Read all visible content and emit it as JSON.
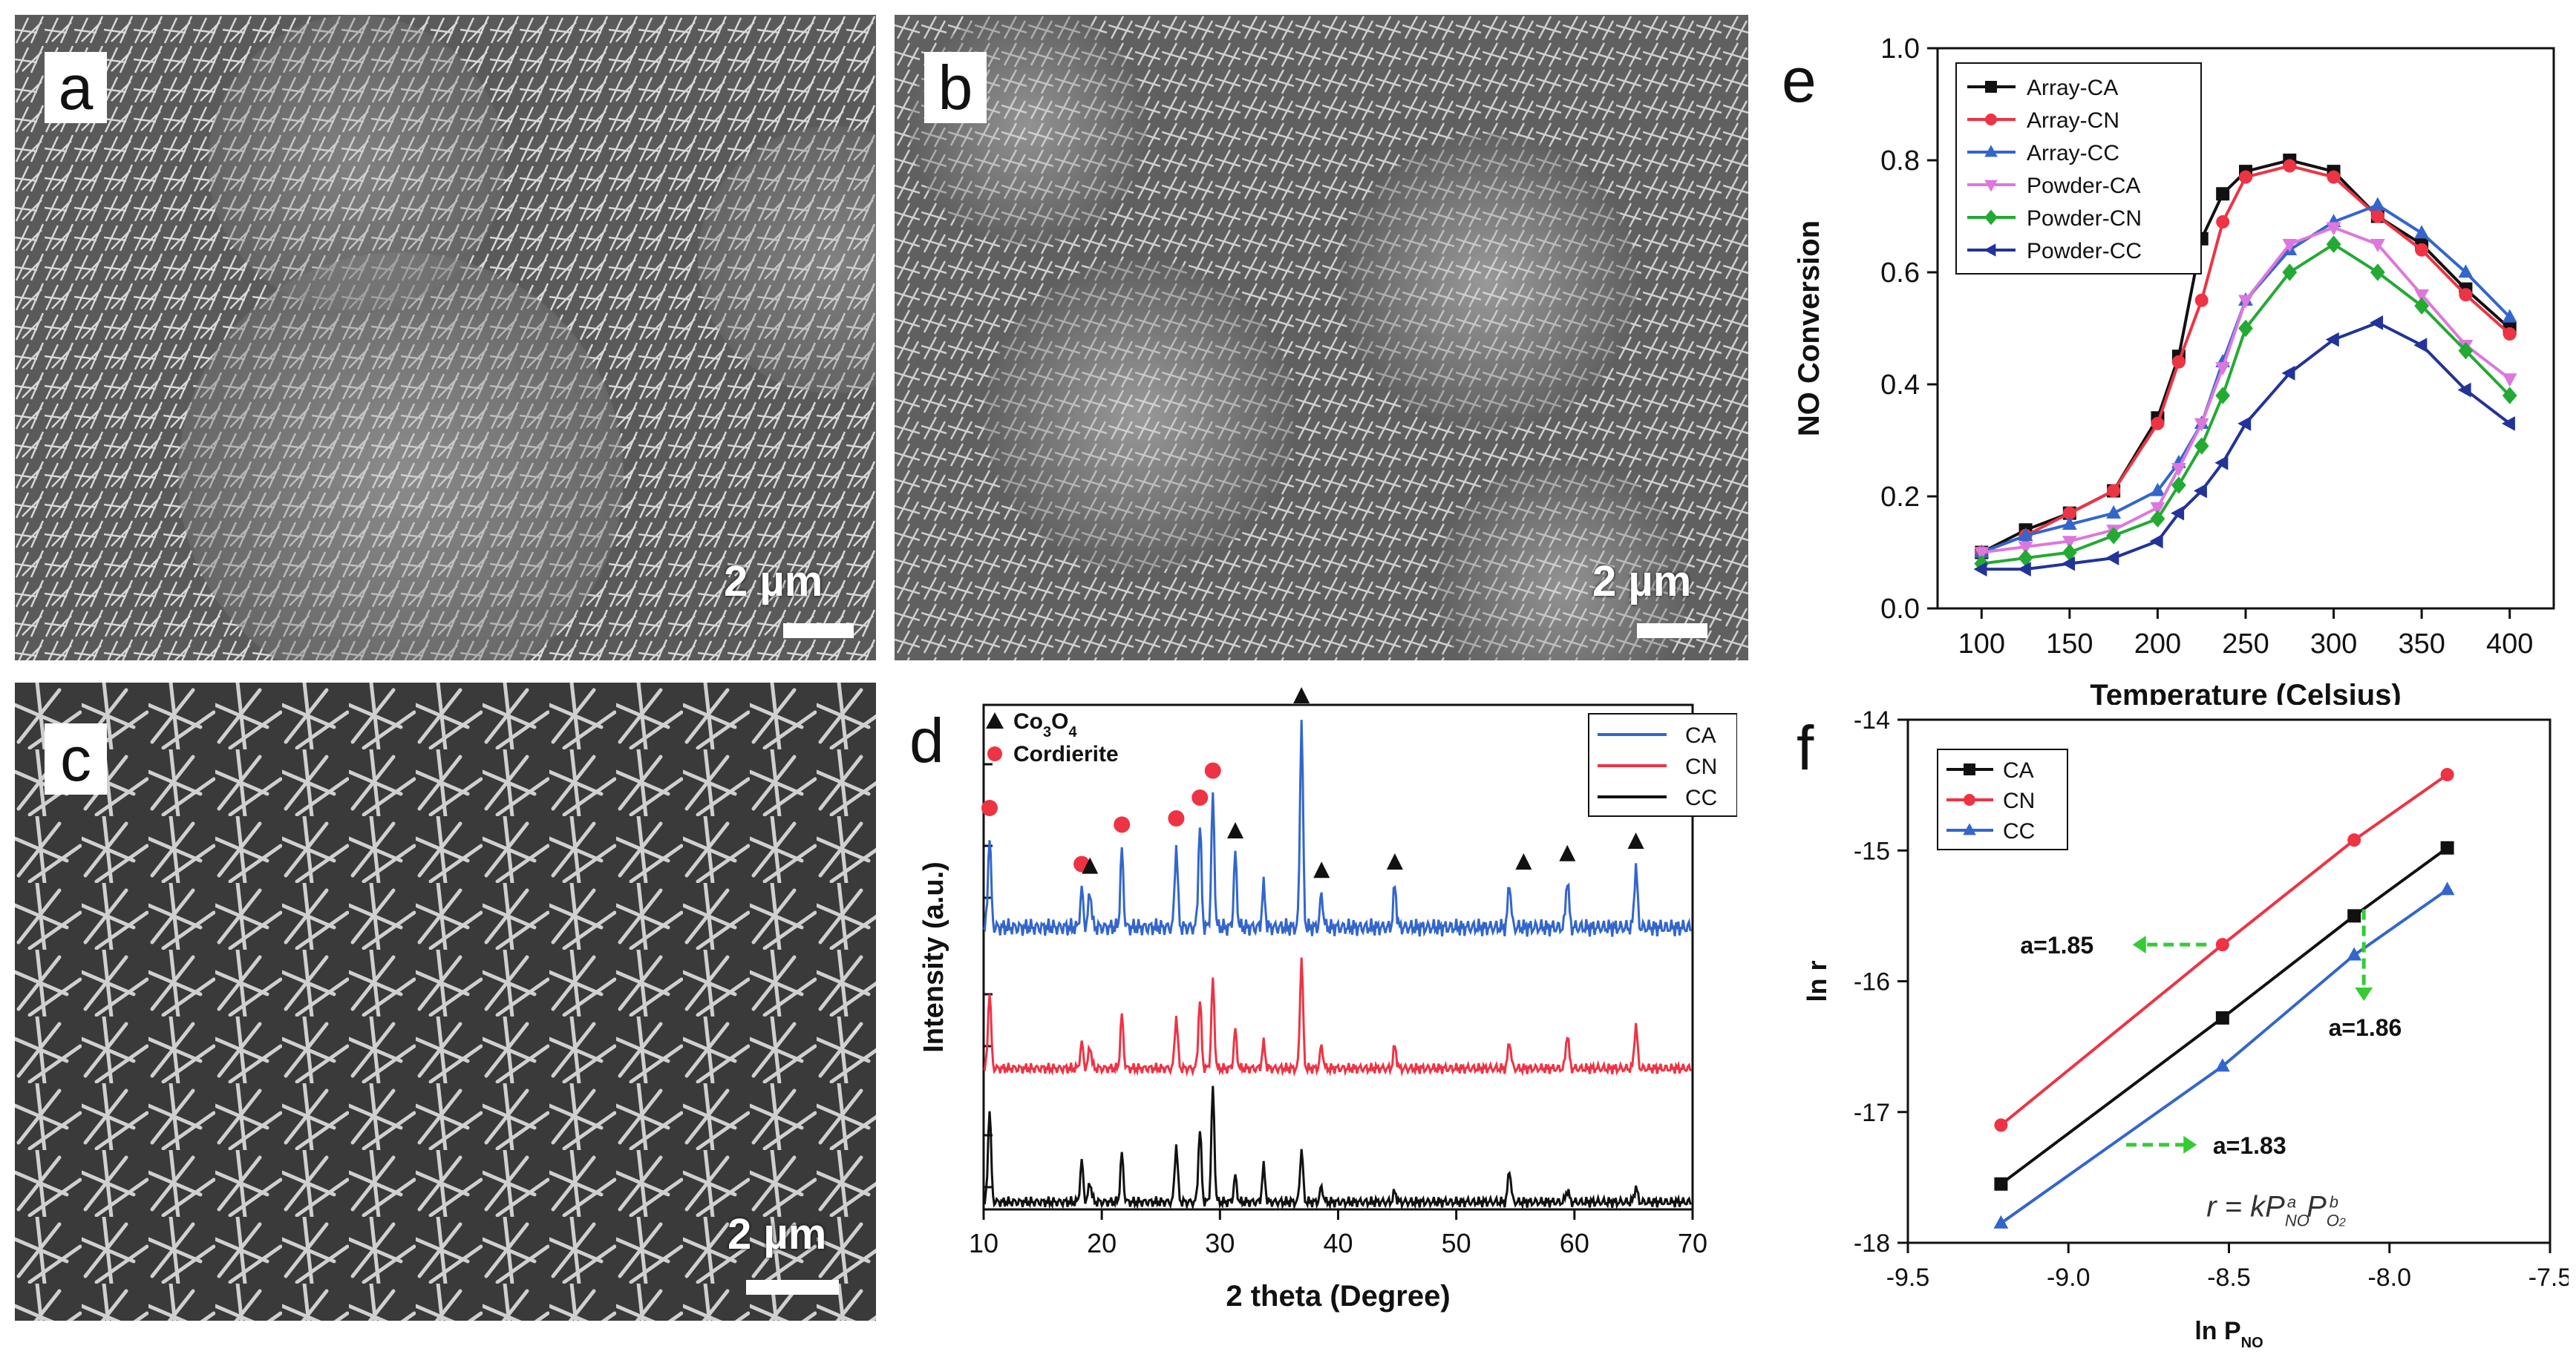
{
  "panels": {
    "a": {
      "letter": "a",
      "scale": "2 µm"
    },
    "b": {
      "letter": "b",
      "scale": "2 µm"
    },
    "c": {
      "letter": "c",
      "scale": "2 µm"
    },
    "d": {
      "letter": "d"
    },
    "e": {
      "letter": "e"
    },
    "f": {
      "letter": "f"
    }
  },
  "colors": {
    "black": "#111111",
    "red": "#ee3344",
    "blue": "#3366cc",
    "pink": "#dd77dd",
    "green": "#22aa33",
    "navy": "#223399",
    "arrow_green": "#33cc33"
  },
  "chart_data": [
    {
      "id": "e",
      "type": "line",
      "xlabel": "Temperature (Celsius)",
      "ylabel": "NO Conversion",
      "xlim": [
        75,
        425
      ],
      "ylim": [
        0.0,
        1.0
      ],
      "xticks": [
        "100",
        "150",
        "200",
        "250",
        "300",
        "350",
        "400"
      ],
      "yticks": [
        "0.0",
        "0.2",
        "0.4",
        "0.6",
        "0.8",
        "1.0"
      ],
      "legend_position": "top-left",
      "x": [
        100,
        125,
        150,
        175,
        200,
        212,
        225,
        237,
        250,
        275,
        300,
        325,
        350,
        375,
        400
      ],
      "series": [
        {
          "name": "Array-CA",
          "marker": "square",
          "color": "#111111",
          "values": [
            0.1,
            0.14,
            0.17,
            0.21,
            0.34,
            0.45,
            0.66,
            0.74,
            0.78,
            0.8,
            0.78,
            0.7,
            0.65,
            0.57,
            0.5
          ]
        },
        {
          "name": "Array-CN",
          "marker": "circle",
          "color": "#ee3344",
          "values": [
            0.1,
            0.13,
            0.17,
            0.21,
            0.33,
            0.44,
            0.55,
            0.69,
            0.77,
            0.79,
            0.77,
            0.7,
            0.64,
            0.56,
            0.49
          ]
        },
        {
          "name": "Array-CC",
          "marker": "triangle-up",
          "color": "#3366cc",
          "values": [
            0.1,
            0.13,
            0.15,
            0.17,
            0.21,
            0.26,
            0.33,
            0.44,
            0.55,
            0.64,
            0.69,
            0.72,
            0.67,
            0.6,
            0.52
          ]
        },
        {
          "name": "Powder-CA",
          "marker": "triangle-down",
          "color": "#dd77dd",
          "values": [
            0.1,
            0.11,
            0.12,
            0.14,
            0.18,
            0.25,
            0.33,
            0.43,
            0.55,
            0.65,
            0.68,
            0.65,
            0.56,
            0.47,
            0.41
          ]
        },
        {
          "name": "Powder-CN",
          "marker": "diamond",
          "color": "#22aa33",
          "values": [
            0.08,
            0.09,
            0.1,
            0.13,
            0.16,
            0.22,
            0.29,
            0.38,
            0.5,
            0.6,
            0.65,
            0.6,
            0.54,
            0.46,
            0.38
          ]
        },
        {
          "name": "Powder-CC",
          "marker": "triangle-left",
          "color": "#223399",
          "values": [
            0.07,
            0.07,
            0.08,
            0.09,
            0.12,
            0.17,
            0.21,
            0.26,
            0.33,
            0.42,
            0.48,
            0.51,
            0.47,
            0.39,
            0.33
          ]
        }
      ]
    },
    {
      "id": "d",
      "type": "line",
      "xlabel": "2 theta (Degree)",
      "ylabel": "Intensity (a.u.)",
      "xlim": [
        10,
        70
      ],
      "xticks": [
        "10",
        "20",
        "30",
        "40",
        "50",
        "60",
        "70"
      ],
      "legend_position": "top-right",
      "marker_legend": [
        {
          "label": "Co3O4",
          "symbol": "triangle"
        },
        {
          "label": "Cordierite",
          "symbol": "dot"
        }
      ],
      "cordierite_peaks": [
        10.5,
        18.3,
        21.7,
        26.3,
        28.3,
        29.4
      ],
      "co3o4_peaks": [
        19.0,
        31.3,
        36.9,
        38.6,
        44.8,
        55.7,
        59.4,
        65.2
      ],
      "series": [
        {
          "name": "CA",
          "color": "#3366cc",
          "peaks": [
            [
              10.5,
              0.45
            ],
            [
              18.3,
              0.18
            ],
            [
              19.0,
              0.18
            ],
            [
              21.7,
              0.37
            ],
            [
              26.3,
              0.4
            ],
            [
              28.3,
              0.5
            ],
            [
              29.4,
              0.63
            ],
            [
              31.3,
              0.35
            ],
            [
              33.7,
              0.2
            ],
            [
              36.9,
              1.0
            ],
            [
              38.6,
              0.16
            ],
            [
              44.8,
              0.2
            ],
            [
              54.5,
              0.22
            ],
            [
              59.4,
              0.24
            ],
            [
              65.2,
              0.3
            ]
          ]
        },
        {
          "name": "CN",
          "color": "#ee3344",
          "peaks": [
            [
              10.5,
              0.62
            ],
            [
              18.3,
              0.2
            ],
            [
              19.0,
              0.18
            ],
            [
              21.7,
              0.42
            ],
            [
              26.3,
              0.42
            ],
            [
              28.3,
              0.55
            ],
            [
              29.4,
              0.7
            ],
            [
              31.3,
              0.3
            ],
            [
              33.7,
              0.2
            ],
            [
              36.9,
              0.88
            ],
            [
              38.6,
              0.18
            ],
            [
              44.8,
              0.18
            ],
            [
              54.5,
              0.22
            ],
            [
              59.4,
              0.28
            ],
            [
              65.2,
              0.35
            ]
          ]
        },
        {
          "name": "CC",
          "color": "#111111",
          "peaks": [
            [
              10.5,
              0.75
            ],
            [
              18.3,
              0.32
            ],
            [
              19.0,
              0.16
            ],
            [
              21.7,
              0.38
            ],
            [
              26.3,
              0.46
            ],
            [
              28.3,
              0.58
            ],
            [
              29.4,
              0.9
            ],
            [
              31.3,
              0.2
            ],
            [
              33.7,
              0.28
            ],
            [
              36.9,
              0.42
            ],
            [
              38.6,
              0.12
            ],
            [
              44.8,
              0.08
            ],
            [
              54.5,
              0.26
            ],
            [
              59.4,
              0.1
            ],
            [
              65.2,
              0.12
            ]
          ]
        }
      ]
    },
    {
      "id": "f",
      "type": "line",
      "xlabel": "ln P_NO",
      "xlabel_main": "ln P",
      "xlabel_sub": "NO",
      "ylabel": "ln r",
      "xlim": [
        -9.5,
        -7.5
      ],
      "ylim": [
        -18.0,
        -14.0
      ],
      "xticks": [
        "-9.5",
        "-9.0",
        "-8.5",
        "-8.0",
        "-7.5"
      ],
      "yticks": [
        "-14",
        "-15",
        "-16",
        "-17",
        "-18"
      ],
      "legend_position": "top-left",
      "x": [
        -9.21,
        -8.52,
        -8.11,
        -7.82
      ],
      "series": [
        {
          "name": "CA",
          "marker": "square",
          "color": "#111111",
          "values": [
            -17.55,
            -16.28,
            -15.5,
            -14.98
          ]
        },
        {
          "name": "CN",
          "marker": "circle",
          "color": "#ee3344",
          "values": [
            -17.1,
            -15.72,
            -14.92,
            -14.42
          ]
        },
        {
          "name": "CC",
          "marker": "triangle-up",
          "color": "#3366cc",
          "values": [
            -17.85,
            -16.65,
            -15.8,
            -15.3
          ]
        }
      ],
      "annotations": [
        "a=1.85",
        "a=1.86",
        "a=1.83"
      ],
      "equation": "r = kP_NO^a P_O2^b"
    }
  ]
}
